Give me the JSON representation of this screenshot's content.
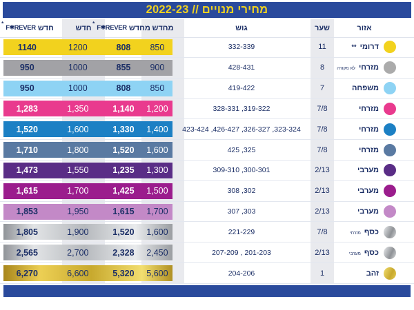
{
  "title": "מחירי מנויים // 2022-23",
  "colors": {
    "navy_text": "#1c2f66",
    "bar_blue": "#2a4a9c",
    "title_yellow": "#f2d21e",
    "stripe_gray": "#e9eaee",
    "white": "#ffffff"
  },
  "header": {
    "area": "אזור",
    "gate": "שער",
    "block": "גוש",
    "renew": "מחדש",
    "new": "חדש",
    "forever_new": {
      "star": "*",
      "logo_f": "F",
      "logo_o": "✱",
      "logo_rest": "REVER",
      "label": "חדש"
    },
    "forever_renew": {
      "star": "*",
      "logo_f": "F",
      "logo_o": "✱",
      "logo_rest": "REVER",
      "label": "מחדש"
    }
  },
  "rows": [
    {
      "area": "דרומי",
      "area_sub": "**",
      "gate": "11",
      "block": "332-339",
      "prices": {
        "forever_new": "1140",
        "new": "1200",
        "forever_renew": "808",
        "renew": "850"
      },
      "band": {
        "type": "solid",
        "color": "#f2d21e",
        "text": "#1c2f66"
      },
      "circle": {
        "type": "solid",
        "color": "#f2d21e"
      }
    },
    {
      "area": "מזרחי",
      "area_sub": "לא מקורה",
      "gate": "8",
      "block": "428-431",
      "prices": {
        "forever_new": "950",
        "new": "1000",
        "forever_renew": "855",
        "renew": "900"
      },
      "band": {
        "type": "solid",
        "color": "#a2a2a6",
        "text": "#1c2f66"
      },
      "circle": {
        "type": "solid",
        "color": "#ababab"
      }
    },
    {
      "area": "משפחה",
      "area_sub": "",
      "gate": "7",
      "block": "419-422",
      "prices": {
        "forever_new": "950",
        "new": "1000",
        "forever_renew": "808",
        "renew": "850"
      },
      "band": {
        "type": "solid",
        "color": "#8ed3f4",
        "text": "#1c2f66"
      },
      "circle": {
        "type": "solid",
        "color": "#8ed3f4"
      }
    },
    {
      "area": "מזרחי",
      "area_sub": "",
      "gate": "7/8",
      "block": "328-331 ,319-322",
      "prices": {
        "forever_new": "1,283",
        "new": "1,350",
        "forever_renew": "1,140",
        "renew": "1,200"
      },
      "band": {
        "type": "solid",
        "color": "#e93a8e",
        "text": "#ffffff"
      },
      "circle": {
        "type": "solid",
        "color": "#e93a8e"
      }
    },
    {
      "area": "מזרחי",
      "area_sub": "",
      "gate": "7/8",
      "block": "423-424 ,426-427 ,326-327 ,323-324",
      "prices": {
        "forever_new": "1,520",
        "new": "1,600",
        "forever_renew": "1,330",
        "renew": "1,400"
      },
      "band": {
        "type": "solid",
        "color": "#1c80c4",
        "text": "#ffffff"
      },
      "circle": {
        "type": "solid",
        "color": "#1c80c4"
      }
    },
    {
      "area": "מזרחי",
      "area_sub": "",
      "gate": "7/8",
      "block": "425 ,325",
      "prices": {
        "forever_new": "1,710",
        "new": "1,800",
        "forever_renew": "1,520",
        "renew": "1,600"
      },
      "band": {
        "type": "solid",
        "color": "#5a7aa2",
        "text": "#ffffff"
      },
      "circle": {
        "type": "solid",
        "color": "#5a7aa2"
      }
    },
    {
      "area": "מערבי",
      "area_sub": "",
      "gate": "2/13",
      "block": "309-310 ,300-301",
      "prices": {
        "forever_new": "1,473",
        "new": "1,550",
        "forever_renew": "1,235",
        "renew": "1,300"
      },
      "band": {
        "type": "solid",
        "color": "#5a2d86",
        "text": "#ffffff"
      },
      "circle": {
        "type": "solid",
        "color": "#5a2d86"
      }
    },
    {
      "area": "מערבי",
      "area_sub": "",
      "gate": "2/13",
      "block": "308 ,302",
      "prices": {
        "forever_new": "1,615",
        "new": "1,700",
        "forever_renew": "1,425",
        "renew": "1,500"
      },
      "band": {
        "type": "solid",
        "color": "#9b1d8d",
        "text": "#ffffff"
      },
      "circle": {
        "type": "solid",
        "color": "#9b1d8d"
      }
    },
    {
      "area": "מערבי",
      "area_sub": "",
      "gate": "2/13",
      "block": "307 ,303",
      "prices": {
        "forever_new": "1,853",
        "new": "1,950",
        "forever_renew": "1,615",
        "renew": "1,700"
      },
      "band": {
        "type": "solid",
        "color": "#c389c7",
        "text": "#1c2f66"
      },
      "circle": {
        "type": "solid",
        "color": "#c389c7"
      }
    },
    {
      "area": "כסף",
      "area_sub": "מזרחי",
      "gate": "7/8",
      "block": "221-229",
      "prices": {
        "forever_new": "1,805",
        "new": "1,900",
        "forever_renew": "1,520",
        "renew": "1,600"
      },
      "band": {
        "type": "silver",
        "color": "#b6b9bd",
        "text": "#1c2f66"
      },
      "circle": {
        "type": "silver",
        "color": "#b6b9bd"
      }
    },
    {
      "area": "כסף",
      "area_sub": "מערבי",
      "gate": "2/13",
      "block": "207-209 , 201-203",
      "prices": {
        "forever_new": "2,565",
        "new": "2,700",
        "forever_renew": "2,328",
        "renew": "2,450"
      },
      "band": {
        "type": "silver",
        "color": "#b6b9bd",
        "text": "#1c2f66"
      },
      "circle": {
        "type": "silver",
        "color": "#b6b9bd"
      }
    },
    {
      "area": "זהב",
      "area_sub": "",
      "gate": "1",
      "block": "204-206",
      "prices": {
        "forever_new": "6,270",
        "new": "6,600",
        "forever_renew": "5,320",
        "renew": "5,600"
      },
      "band": {
        "type": "gold",
        "color": "#d4b83a",
        "text": "#1c2f66"
      },
      "circle": {
        "type": "gold",
        "color": "#d4b83a"
      }
    }
  ]
}
